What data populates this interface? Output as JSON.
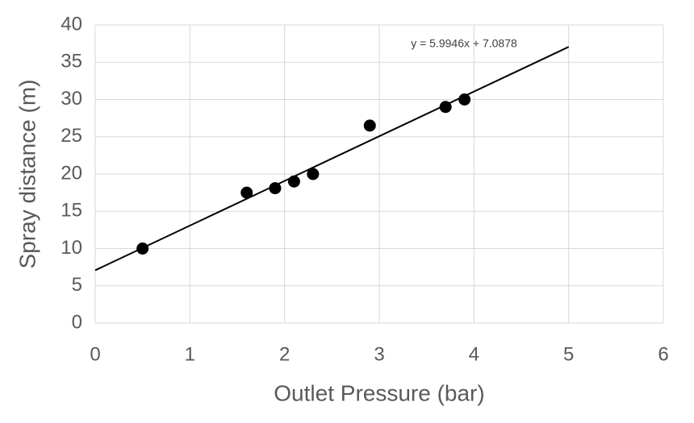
{
  "chart_data": {
    "type": "scatter",
    "x_label": "Outlet Pressure (bar)",
    "y_label": "Spray distance (m)",
    "series": [
      {
        "name": "Spray distance",
        "color": "#000000",
        "x": [
          0.5,
          1.6,
          1.9,
          2.1,
          2.3,
          2.9,
          3.7,
          3.9
        ],
        "values": [
          10,
          17.5,
          18.1,
          19,
          20,
          26.5,
          29,
          30
        ]
      }
    ],
    "trendline": {
      "label": "y = 5.9946x + 7.0878",
      "slope": 5.9946,
      "intercept": 7.0878,
      "x_range": [
        0,
        5
      ],
      "color": "#000000"
    },
    "xlim": [
      0,
      6
    ],
    "xticks": [
      0,
      1,
      2,
      3,
      4,
      5,
      6
    ],
    "ylim": [
      0,
      40
    ],
    "yticks": [
      0,
      5,
      10,
      15,
      20,
      25,
      30,
      35,
      40
    ],
    "grid": true
  }
}
